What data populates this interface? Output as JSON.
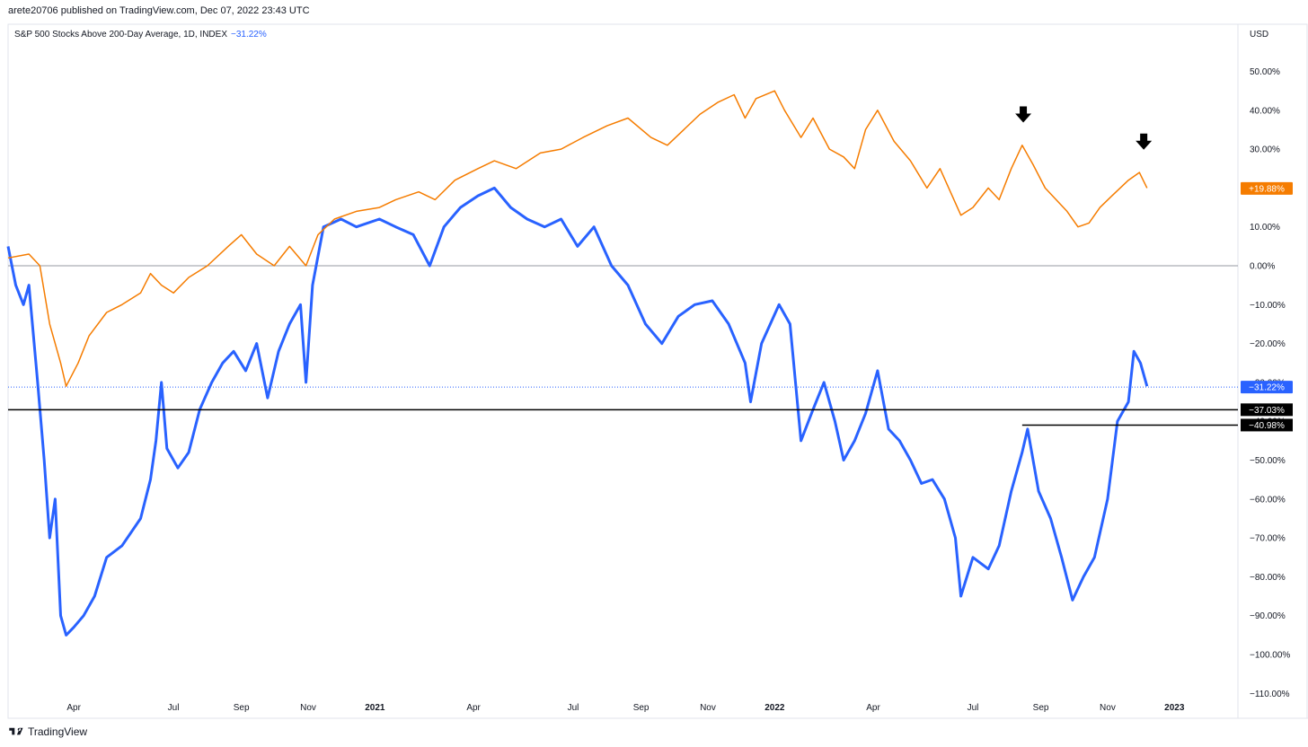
{
  "header": {
    "published_text": "arete20706 published on TradingView.com, Dec 07, 2022 23:43 UTC",
    "legend_text": "S&P 500 Stocks Above 200-Day Average, 1D, INDEX",
    "legend_value": "−31.22%",
    "currency": "USD"
  },
  "footer": {
    "brand": "TradingView"
  },
  "colors": {
    "blue": "#2962ff",
    "orange": "#f57c00",
    "black": "#000000",
    "zero_line": "#9598a1"
  },
  "chart_data": {
    "type": "line",
    "y_ticks": [
      "50.00%",
      "40.00%",
      "30.00%",
      "20.00%",
      "10.00%",
      "0.00%",
      "−10.00%",
      "−20.00%",
      "−30.00%",
      "−40.00%",
      "−50.00%",
      "−60.00%",
      "−70.00%",
      "−80.00%",
      "−90.00%",
      "−100.00%",
      "−110.00%"
    ],
    "y_tick_values": [
      50,
      40,
      30,
      20,
      10,
      0,
      -10,
      -20,
      -30,
      -40,
      -50,
      -60,
      -70,
      -80,
      -90,
      -100,
      -110
    ],
    "ylim": [
      -110,
      60
    ],
    "x_range": [
      "2020-02-01",
      "2023-02-28"
    ],
    "x_ticks": [
      {
        "label": "Apr",
        "date": "2020-04-01",
        "year": false
      },
      {
        "label": "Jul",
        "date": "2020-07-01",
        "year": false
      },
      {
        "label": "Sep",
        "date": "2020-09-01",
        "year": false
      },
      {
        "label": "Nov",
        "date": "2020-11-01",
        "year": false
      },
      {
        "label": "2021",
        "date": "2021-01-01",
        "year": true
      },
      {
        "label": "Apr",
        "date": "2021-04-01",
        "year": false
      },
      {
        "label": "Jul",
        "date": "2021-07-01",
        "year": false
      },
      {
        "label": "Sep",
        "date": "2021-09-01",
        "year": false
      },
      {
        "label": "Nov",
        "date": "2021-11-01",
        "year": false
      },
      {
        "label": "2022",
        "date": "2022-01-01",
        "year": true
      },
      {
        "label": "Apr",
        "date": "2022-04-01",
        "year": false
      },
      {
        "label": "Jul",
        "date": "2022-07-01",
        "year": false
      },
      {
        "label": "Sep",
        "date": "2022-09-01",
        "year": false
      },
      {
        "label": "Nov",
        "date": "2022-11-01",
        "year": false
      },
      {
        "label": "2023",
        "date": "2023-01-01",
        "year": true
      }
    ],
    "series": [
      {
        "color": "#2962ff",
        "points": [
          [
            "2020-02-01",
            5
          ],
          [
            "2020-02-08",
            -5
          ],
          [
            "2020-02-15",
            -10
          ],
          [
            "2020-02-20",
            -5
          ],
          [
            "2020-02-28",
            -30
          ],
          [
            "2020-03-05",
            -50
          ],
          [
            "2020-03-10",
            -70
          ],
          [
            "2020-03-15",
            -60
          ],
          [
            "2020-03-20",
            -90
          ],
          [
            "2020-03-25",
            -95
          ],
          [
            "2020-04-01",
            -93
          ],
          [
            "2020-04-10",
            -90
          ],
          [
            "2020-04-20",
            -85
          ],
          [
            "2020-05-01",
            -75
          ],
          [
            "2020-05-15",
            -72
          ],
          [
            "2020-06-01",
            -65
          ],
          [
            "2020-06-10",
            -55
          ],
          [
            "2020-06-15",
            -45
          ],
          [
            "2020-06-20",
            -30
          ],
          [
            "2020-06-25",
            -47
          ],
          [
            "2020-07-05",
            -52
          ],
          [
            "2020-07-15",
            -48
          ],
          [
            "2020-07-25",
            -37
          ],
          [
            "2020-08-05",
            -30
          ],
          [
            "2020-08-15",
            -25
          ],
          [
            "2020-08-25",
            -22
          ],
          [
            "2020-09-05",
            -27
          ],
          [
            "2020-09-15",
            -20
          ],
          [
            "2020-09-25",
            -34
          ],
          [
            "2020-10-05",
            -22
          ],
          [
            "2020-10-15",
            -15
          ],
          [
            "2020-10-25",
            -10
          ],
          [
            "2020-10-30",
            -30
          ],
          [
            "2020-11-05",
            -5
          ],
          [
            "2020-11-15",
            10
          ],
          [
            "2020-12-01",
            12
          ],
          [
            "2020-12-15",
            10
          ],
          [
            "2021-01-05",
            12
          ],
          [
            "2021-01-20",
            10
          ],
          [
            "2021-02-05",
            8
          ],
          [
            "2021-02-20",
            0
          ],
          [
            "2021-03-05",
            10
          ],
          [
            "2021-03-20",
            15
          ],
          [
            "2021-04-05",
            18
          ],
          [
            "2021-04-20",
            20
          ],
          [
            "2021-05-05",
            15
          ],
          [
            "2021-05-20",
            12
          ],
          [
            "2021-06-05",
            10
          ],
          [
            "2021-06-20",
            12
          ],
          [
            "2021-07-05",
            5
          ],
          [
            "2021-07-20",
            10
          ],
          [
            "2021-08-05",
            0
          ],
          [
            "2021-08-20",
            -5
          ],
          [
            "2021-09-05",
            -15
          ],
          [
            "2021-09-20",
            -20
          ],
          [
            "2021-10-05",
            -13
          ],
          [
            "2021-10-20",
            -10
          ],
          [
            "2021-11-05",
            -9
          ],
          [
            "2021-11-20",
            -15
          ],
          [
            "2021-12-05",
            -25
          ],
          [
            "2021-12-10",
            -35
          ],
          [
            "2021-12-20",
            -20
          ],
          [
            "2022-01-05",
            -10
          ],
          [
            "2022-01-15",
            -15
          ],
          [
            "2022-01-25",
            -45
          ],
          [
            "2022-02-05",
            -37
          ],
          [
            "2022-02-15",
            -30
          ],
          [
            "2022-02-25",
            -40
          ],
          [
            "2022-03-05",
            -50
          ],
          [
            "2022-03-15",
            -45
          ],
          [
            "2022-03-25",
            -38
          ],
          [
            "2022-04-05",
            -27
          ],
          [
            "2022-04-15",
            -42
          ],
          [
            "2022-04-25",
            -45
          ],
          [
            "2022-05-05",
            -50
          ],
          [
            "2022-05-15",
            -56
          ],
          [
            "2022-05-25",
            -55
          ],
          [
            "2022-06-05",
            -60
          ],
          [
            "2022-06-15",
            -70
          ],
          [
            "2022-06-20",
            -85
          ],
          [
            "2022-07-01",
            -75
          ],
          [
            "2022-07-15",
            -78
          ],
          [
            "2022-07-25",
            -72
          ],
          [
            "2022-08-05",
            -58
          ],
          [
            "2022-08-15",
            -48
          ],
          [
            "2022-08-20",
            -42
          ],
          [
            "2022-08-30",
            -58
          ],
          [
            "2022-09-10",
            -65
          ],
          [
            "2022-09-20",
            -75
          ],
          [
            "2022-09-30",
            -86
          ],
          [
            "2022-10-10",
            -80
          ],
          [
            "2022-10-20",
            -75
          ],
          [
            "2022-11-01",
            -60
          ],
          [
            "2022-11-10",
            -40
          ],
          [
            "2022-11-20",
            -35
          ],
          [
            "2022-11-25",
            -22
          ],
          [
            "2022-12-01",
            -25
          ],
          [
            "2022-12-07",
            -31
          ]
        ]
      },
      {
        "color": "#f57c00",
        "points": [
          [
            "2020-02-01",
            2
          ],
          [
            "2020-02-20",
            3
          ],
          [
            "2020-03-01",
            0
          ],
          [
            "2020-03-10",
            -15
          ],
          [
            "2020-03-20",
            -25
          ],
          [
            "2020-03-25",
            -31
          ],
          [
            "2020-04-05",
            -25
          ],
          [
            "2020-04-15",
            -18
          ],
          [
            "2020-05-01",
            -12
          ],
          [
            "2020-05-15",
            -10
          ],
          [
            "2020-06-01",
            -7
          ],
          [
            "2020-06-10",
            -2
          ],
          [
            "2020-06-20",
            -5
          ],
          [
            "2020-07-01",
            -7
          ],
          [
            "2020-07-15",
            -3
          ],
          [
            "2020-08-01",
            0
          ],
          [
            "2020-08-20",
            5
          ],
          [
            "2020-09-01",
            8
          ],
          [
            "2020-09-15",
            3
          ],
          [
            "2020-10-01",
            0
          ],
          [
            "2020-10-15",
            5
          ],
          [
            "2020-10-30",
            0
          ],
          [
            "2020-11-10",
            8
          ],
          [
            "2020-11-25",
            12
          ],
          [
            "2020-12-15",
            14
          ],
          [
            "2021-01-05",
            15
          ],
          [
            "2021-01-20",
            17
          ],
          [
            "2021-02-10",
            19
          ],
          [
            "2021-02-25",
            17
          ],
          [
            "2021-03-15",
            22
          ],
          [
            "2021-04-05",
            25
          ],
          [
            "2021-04-20",
            27
          ],
          [
            "2021-05-10",
            25
          ],
          [
            "2021-06-01",
            29
          ],
          [
            "2021-06-20",
            30
          ],
          [
            "2021-07-10",
            33
          ],
          [
            "2021-08-01",
            36
          ],
          [
            "2021-08-20",
            38
          ],
          [
            "2021-09-10",
            33
          ],
          [
            "2021-09-25",
            31
          ],
          [
            "2021-10-10",
            35
          ],
          [
            "2021-10-25",
            39
          ],
          [
            "2021-11-10",
            42
          ],
          [
            "2021-11-25",
            44
          ],
          [
            "2021-12-05",
            38
          ],
          [
            "2021-12-15",
            43
          ],
          [
            "2022-01-01",
            45
          ],
          [
            "2022-01-10",
            40
          ],
          [
            "2022-01-25",
            33
          ],
          [
            "2022-02-05",
            38
          ],
          [
            "2022-02-20",
            30
          ],
          [
            "2022-03-05",
            28
          ],
          [
            "2022-03-15",
            25
          ],
          [
            "2022-03-25",
            35
          ],
          [
            "2022-04-05",
            40
          ],
          [
            "2022-04-20",
            32
          ],
          [
            "2022-05-05",
            27
          ],
          [
            "2022-05-20",
            20
          ],
          [
            "2022-06-01",
            25
          ],
          [
            "2022-06-20",
            13
          ],
          [
            "2022-07-01",
            15
          ],
          [
            "2022-07-15",
            20
          ],
          [
            "2022-07-25",
            17
          ],
          [
            "2022-08-05",
            25
          ],
          [
            "2022-08-15",
            31
          ],
          [
            "2022-08-25",
            26
          ],
          [
            "2022-09-05",
            20
          ],
          [
            "2022-09-15",
            17
          ],
          [
            "2022-09-25",
            14
          ],
          [
            "2022-10-05",
            10
          ],
          [
            "2022-10-15",
            11
          ],
          [
            "2022-10-25",
            15
          ],
          [
            "2022-11-05",
            18
          ],
          [
            "2022-11-20",
            22
          ],
          [
            "2022-11-30",
            24
          ],
          [
            "2022-12-07",
            20
          ]
        ]
      }
    ],
    "annotations": {
      "horizontal_lines": [
        {
          "value": -37.03,
          "color": "#000000",
          "from": "2020-02-01",
          "to": "2023-02-28",
          "label": "−37.03%"
        },
        {
          "value": -40.98,
          "color": "#000000",
          "from": "2022-08-15",
          "to": "2023-02-28",
          "label": "−40.98%"
        }
      ],
      "last_value_labels": [
        {
          "value": 19.88,
          "color": "#f57c00",
          "label": "+19.88%"
        },
        {
          "value": -31.22,
          "color": "#2962ff",
          "label": "−31.22%"
        }
      ],
      "arrows": [
        {
          "date": "2022-08-16",
          "value": 38
        },
        {
          "date": "2022-12-04",
          "value": 31
        }
      ]
    }
  }
}
